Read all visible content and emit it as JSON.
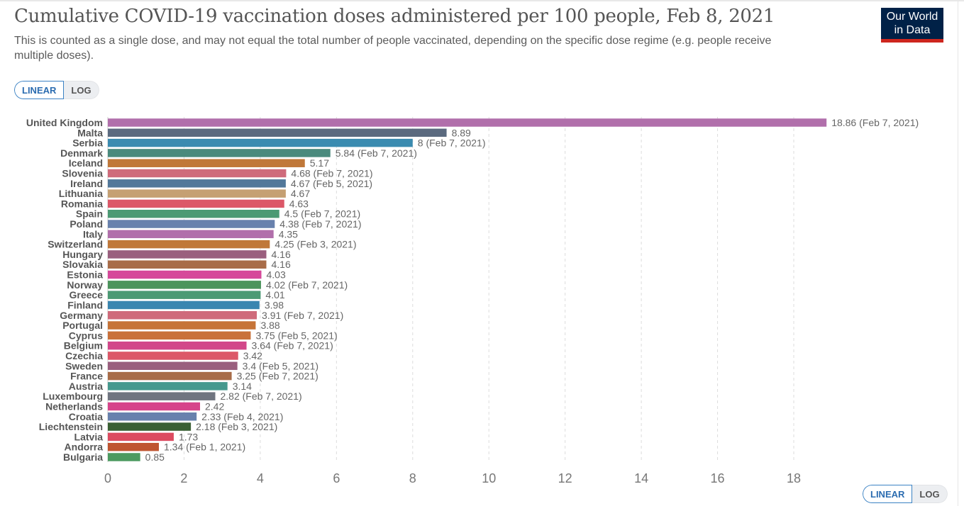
{
  "header": {
    "title": "Cumulative COVID-19 vaccination doses administered per 100 people, Feb 8, 2021",
    "subtitle": "This is counted as a single dose, and may not equal the total number of people vaccinated, depending on the specific dose regime (e.g. people receive multiple doses).",
    "logo_line1": "Our World",
    "logo_line2": "in Data"
  },
  "scale_toggle_top": {
    "linear": "LINEAR",
    "log": "LOG",
    "selected": "LINEAR"
  },
  "scale_toggle_bottom": {
    "linear": "LINEAR",
    "log": "LOG",
    "selected": "LINEAR"
  },
  "colors": {
    "logo_bg": "#002147",
    "logo_accent": "#ce261e",
    "toggle_active": "#3b82c4"
  },
  "chart_data": {
    "type": "bar",
    "orientation": "horizontal",
    "title": "Cumulative COVID-19 vaccination doses administered per 100 people, Feb 8, 2021",
    "xlabel": "",
    "ylabel": "",
    "xlim": [
      0,
      19
    ],
    "xticks": [
      0,
      2,
      4,
      6,
      8,
      10,
      12,
      14,
      16,
      18
    ],
    "grid": "vertical-dashed",
    "categories": [
      "United Kingdom",
      "Malta",
      "Serbia",
      "Denmark",
      "Iceland",
      "Slovenia",
      "Ireland",
      "Lithuania",
      "Romania",
      "Spain",
      "Poland",
      "Italy",
      "Switzerland",
      "Hungary",
      "Slovakia",
      "Estonia",
      "Norway",
      "Greece",
      "Finland",
      "Germany",
      "Portugal",
      "Cyprus",
      "Belgium",
      "Czechia",
      "Sweden",
      "France",
      "Austria",
      "Luxembourg",
      "Netherlands",
      "Croatia",
      "Liechtenstein",
      "Latvia",
      "Andorra",
      "Bulgaria"
    ],
    "values": [
      18.86,
      8.89,
      8,
      5.84,
      5.17,
      4.68,
      4.67,
      4.67,
      4.63,
      4.5,
      4.38,
      4.35,
      4.25,
      4.16,
      4.16,
      4.03,
      4.02,
      4.01,
      3.98,
      3.91,
      3.88,
      3.75,
      3.64,
      3.42,
      3.4,
      3.25,
      3.14,
      2.82,
      2.42,
      2.33,
      2.18,
      1.73,
      1.34,
      0.85
    ],
    "value_labels": [
      "18.86 (Feb 7, 2021)",
      "8.89",
      "8 (Feb 7, 2021)",
      "5.84 (Feb 7, 2021)",
      "5.17",
      "4.68 (Feb 7, 2021)",
      "4.67 (Feb 5, 2021)",
      "4.67",
      "4.63",
      "4.5 (Feb 7, 2021)",
      "4.38 (Feb 7, 2021)",
      "4.35",
      "4.25 (Feb 3, 2021)",
      "4.16",
      "4.16",
      "4.03",
      "4.02 (Feb 7, 2021)",
      "4.01",
      "3.98",
      "3.91 (Feb 7, 2021)",
      "3.88",
      "3.75 (Feb 5, 2021)",
      "3.64 (Feb 7, 2021)",
      "3.42",
      "3.4 (Feb 5, 2021)",
      "3.25 (Feb 7, 2021)",
      "3.14",
      "2.82 (Feb 7, 2021)",
      "2.42",
      "2.33 (Feb 4, 2021)",
      "2.18 (Feb 3, 2021)",
      "1.73",
      "1.34 (Feb 1, 2021)",
      "0.85"
    ],
    "bar_colors": [
      "#b16fab",
      "#5b6a7f",
      "#3a8bb0",
      "#4a8a7d",
      "#c07839",
      "#cf6b7b",
      "#52789a",
      "#c5a073",
      "#dc5868",
      "#4c9a74",
      "#6881ad",
      "#b16fab",
      "#c07839",
      "#9a5f7e",
      "#a86c48",
      "#d6489a",
      "#4c945c",
      "#4c9a74",
      "#3a86b0",
      "#cf6b7b",
      "#c67438",
      "#c9713a",
      "#d2478a",
      "#dc5868",
      "#9a5f7e",
      "#a86c48",
      "#46998e",
      "#707580",
      "#d6448a",
      "#6881ad",
      "#3a6034",
      "#dc4b60",
      "#bf5430",
      "#4c9a60"
    ]
  }
}
